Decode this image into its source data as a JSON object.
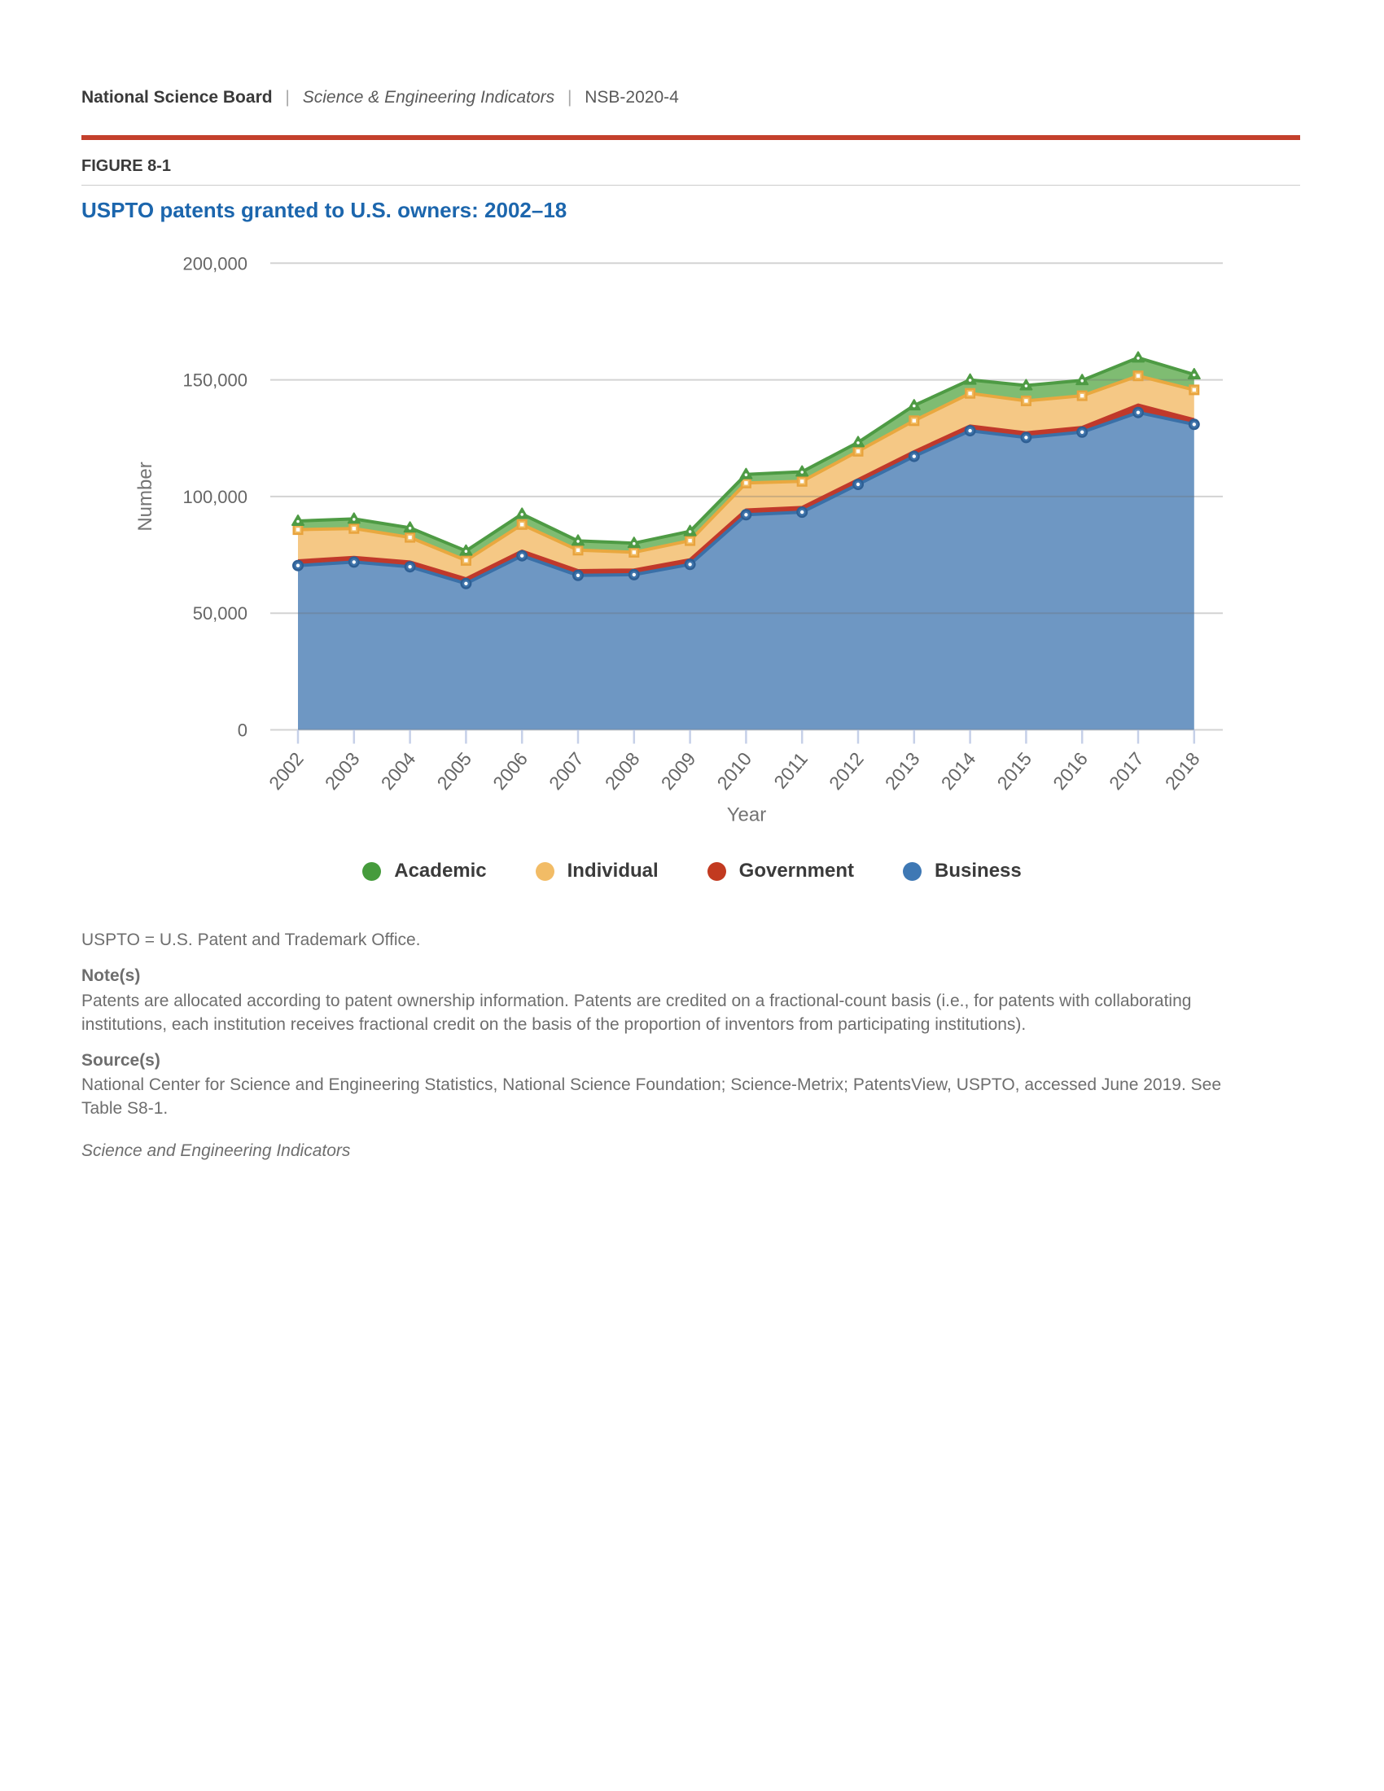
{
  "header": {
    "org": "National Science Board",
    "separator": "|",
    "publication": "Science & Engineering Indicators",
    "report_id": "NSB-2020-4"
  },
  "figure": {
    "label": "FIGURE 8-1",
    "title": "USPTO patents granted to U.S. owners: 2002–18"
  },
  "colors": {
    "rule_red": "#c4402c",
    "title_blue": "#1c66ad",
    "axis_text": "#666666",
    "axis_label": "#747474",
    "tick_mark": "#c6d0e8"
  },
  "chart_data": {
    "type": "area",
    "stacked": true,
    "title": "USPTO patents granted to U.S. owners: 2002–18",
    "xlabel": "Year",
    "ylabel": "Number",
    "ylim": [
      0,
      200000
    ],
    "yticks": [
      0,
      50000,
      100000,
      150000,
      200000
    ],
    "grid": true,
    "categories": [
      2002,
      2003,
      2004,
      2005,
      2006,
      2007,
      2008,
      2009,
      2010,
      2011,
      2012,
      2013,
      2014,
      2015,
      2016,
      2017,
      2018
    ],
    "series": [
      {
        "name": "Business",
        "line": "#3a70a8",
        "fill": "#6e97c3",
        "marker": "circle",
        "values": [
          70400,
          71900,
          69900,
          62700,
          74600,
          66200,
          66500,
          70900,
          92200,
          93300,
          105200,
          117200,
          128200,
          125300,
          127600,
          136000,
          130900
        ]
      },
      {
        "name": "Government",
        "line": "#c0392b",
        "fill": "#c0392b",
        "marker": "none",
        "values": [
          2000,
          2000,
          2000,
          2000,
          2000,
          2000,
          2000,
          2000,
          2000,
          2000,
          2000,
          2000,
          2000,
          2000,
          2000,
          3200,
          2000
        ]
      },
      {
        "name": "Individual",
        "line": "#e9a83f",
        "fill": "#f5c885",
        "marker": "square",
        "values": [
          13400,
          12400,
          10600,
          7900,
          11400,
          8800,
          7600,
          8200,
          11600,
          11200,
          12200,
          13300,
          14000,
          13700,
          13600,
          12500,
          12800
        ]
      },
      {
        "name": "Academic",
        "line": "#4e9b44",
        "fill": "#7fbc72",
        "marker": "triangle",
        "values": [
          3700,
          4100,
          4100,
          4100,
          4500,
          4000,
          3900,
          4000,
          3700,
          4100,
          3800,
          6500,
          5800,
          6600,
          6600,
          7800,
          6600
        ]
      }
    ],
    "legend_order": [
      "Academic",
      "Individual",
      "Government",
      "Business"
    ],
    "legend_colors": {
      "Academic": "#459b3c",
      "Individual": "#f2bc66",
      "Government": "#c23a20",
      "Business": "#3e78b4"
    }
  },
  "footnotes": {
    "abbreviation": "USPTO = U.S. Patent and Trademark Office.",
    "notes_heading": "Note(s)",
    "notes_text": "Patents are allocated according to patent ownership information. Patents are credited on a fractional-count basis (i.e., for patents with collaborating\ninstitutions, each institution receives fractional credit on the basis of the proportion of inventors from participating institutions).",
    "sources_heading": "Source(s)",
    "sources_text": "National Center for Science and Engineering Statistics, National Science Foundation; Science-Metrix; PatentsView, USPTO, accessed June 2019. See\nTable S8-1.",
    "publication_italic": "Science and Engineering Indicators"
  }
}
